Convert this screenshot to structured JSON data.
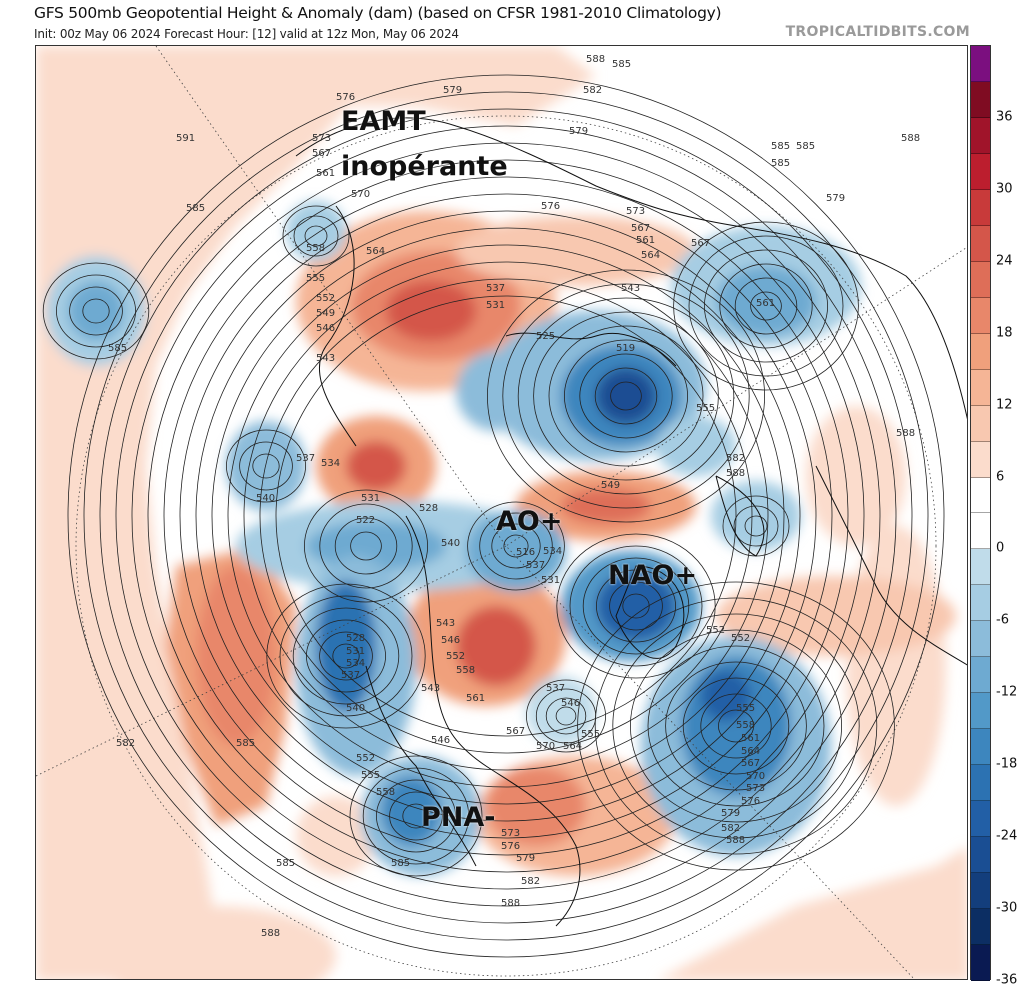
{
  "header": {
    "title": "GFS 500mb Geopotential Height & Anomaly (dam) (based on CFSR 1981-2010 Climatology)",
    "subtitle": "Init: 00z May 06 2024   Forecast Hour: [12]   valid at 12z Mon, May 06 2024",
    "brand": "TROPICALTIDBITS.COM"
  },
  "annotations": {
    "eamt": "EAMT",
    "eamt2": "inopérante",
    "ao": "AO+",
    "nao": "NAO+",
    "pna": "PNA-"
  },
  "colorbar": {
    "ticks": [
      "36",
      "30",
      "24",
      "18",
      "12",
      "6",
      "0",
      "-6",
      "-12",
      "-18",
      "-24",
      "-30",
      "-36"
    ],
    "colors": [
      "#7b0f7f",
      "#7f0c22",
      "#a0142a",
      "#bc1e2e",
      "#c83a3a",
      "#d4564a",
      "#de6e58",
      "#e8876a",
      "#f0a07c",
      "#f5b596",
      "#f8c8b0",
      "#fbdccc",
      "#ffffff",
      "#ffffff",
      "#c0dcea",
      "#a6cde3",
      "#8cbcda",
      "#6eaad1",
      "#5299c8",
      "#3d86be",
      "#2c72b2",
      "#225fa6",
      "#1a4e93",
      "#133e7c",
      "#0c2e63",
      "#0a1a52"
    ]
  },
  "contour_labels": [
    "588",
    "585",
    "579",
    "582",
    "579",
    "591",
    "588",
    "585",
    "585",
    "585",
    "576",
    "573",
    "567",
    "561",
    "570",
    "564",
    "558",
    "555",
    "552",
    "549",
    "546",
    "543",
    "537",
    "531",
    "525",
    "519",
    "543",
    "579",
    "585",
    "582",
    "588",
    "585",
    "576",
    "573",
    "567",
    "561",
    "564",
    "561",
    "567",
    "588",
    "552",
    "555",
    "558",
    "540",
    "537",
    "534",
    "531",
    "528",
    "522",
    "516",
    "540",
    "537",
    "534",
    "531",
    "555",
    "549",
    "552",
    "543",
    "546",
    "552",
    "558",
    "561",
    "567",
    "570",
    "564",
    "555",
    "546",
    "537",
    "528",
    "531",
    "534",
    "537",
    "540",
    "543",
    "546",
    "552",
    "555",
    "558",
    "561",
    "564",
    "567",
    "570",
    "573",
    "576",
    "579",
    "582",
    "573",
    "576",
    "579",
    "582",
    "585",
    "588",
    "585",
    "588",
    "588",
    "582",
    "585"
  ]
}
